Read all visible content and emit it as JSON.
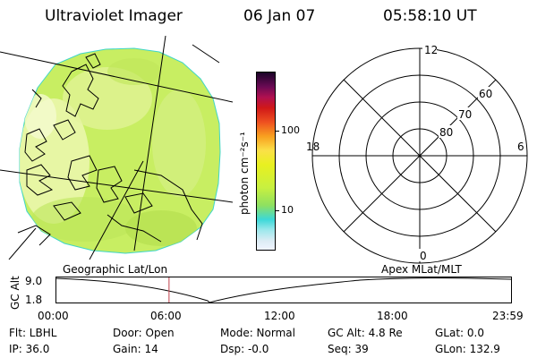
{
  "header": {
    "title": "Ultraviolet Imager",
    "date": "06 Jan 07",
    "time": "05:58:10 UT"
  },
  "colorbar": {
    "unit_label": "photon cm⁻²s⁻¹",
    "ticks": [
      "100",
      "10"
    ]
  },
  "polar_plot": {
    "mlt_labels": [
      "12",
      "18",
      "6",
      "0"
    ],
    "lat_labels": [
      "60",
      "70",
      "80"
    ]
  },
  "map_labels": {
    "left": "Geographic Lat/Lon",
    "right": "Apex MLat/MLT"
  },
  "altitude_plot": {
    "ylabel": "GC Alt",
    "yticks": [
      "9.0",
      "1.8"
    ],
    "xticks": [
      "00:00",
      "06:00",
      "12:00",
      "18:00",
      "23:59"
    ],
    "current_time_hours": 5.97
  },
  "status": {
    "filter": "Flt: LBHL",
    "door": "Door: Open",
    "mode": "Mode: Normal",
    "gc_alt": "GC Alt: 4.8 Re",
    "glat": "GLat:  0.0",
    "ip": "IP: 36.0",
    "gain": "Gain: 14",
    "dsp": "Dsp:   -0.0",
    "seq": "Seq: 39",
    "glon": "GLon: 132.9"
  },
  "colors": {
    "image_fill": "#c8f060",
    "bright": "#f4fbc8",
    "cursor_line": "#c0404a"
  }
}
